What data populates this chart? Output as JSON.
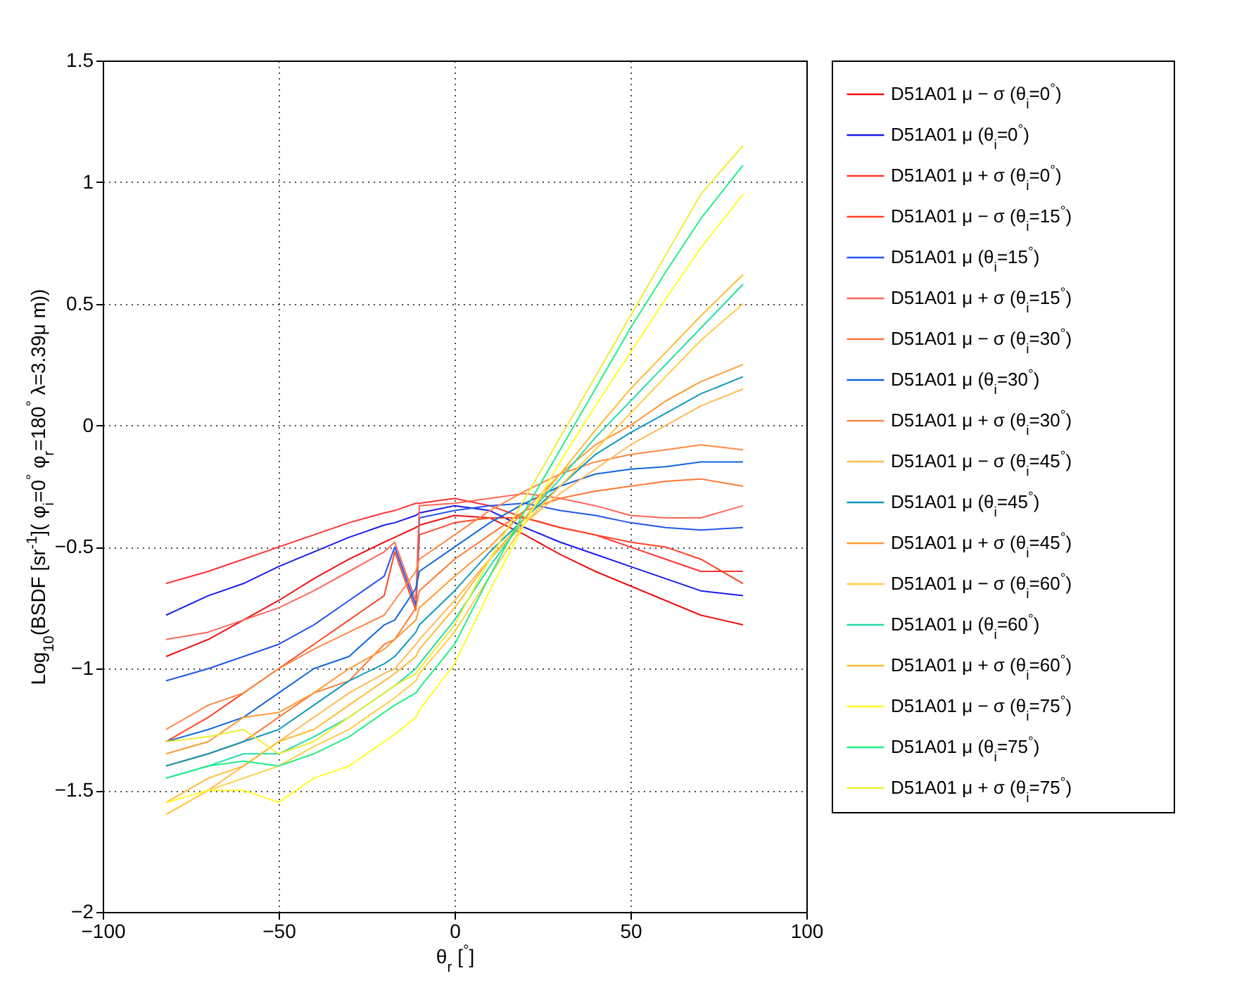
{
  "chart_data": {
    "type": "line",
    "xlabel": "θ$_{r}$ [$^{°}$]",
    "ylabel": "Log$_{10}$(BSDF [sr$^{-1}$]( φ$_{i}$=0$^{°}$  φ$_{r}$=180$^{°}$  λ=3.39μ m))",
    "x": [
      -82,
      -70,
      -60,
      -50,
      -40,
      -30,
      -20,
      -17,
      -11,
      -10,
      0,
      10,
      20,
      30,
      40,
      50,
      60,
      70,
      82
    ],
    "series": [
      {
        "name": "D51A01 μ − σ (θ$_{i}$=0$^{°}$)",
        "color": "#ee1111",
        "values": [
          -0.95,
          -0.88,
          -0.8,
          -0.72,
          -0.63,
          -0.55,
          -0.48,
          -0.46,
          -0.42,
          -0.41,
          -0.37,
          -0.38,
          -0.45,
          -0.53,
          -0.6,
          -0.66,
          -0.72,
          -0.78,
          -0.82
        ]
      },
      {
        "name": "D51A01 μ (θ$_{i}$=0$^{°}$)",
        "color": "#1a1aee",
        "values": [
          -0.78,
          -0.7,
          -0.65,
          -0.58,
          -0.52,
          -0.46,
          -0.41,
          -0.4,
          -0.37,
          -0.36,
          -0.33,
          -0.35,
          -0.42,
          -0.48,
          -0.53,
          -0.58,
          -0.63,
          -0.68,
          -0.7
        ]
      },
      {
        "name": "D51A01 μ + σ (θ$_{i}$=0$^{°}$)",
        "color": "#ff3333",
        "values": [
          -0.65,
          -0.6,
          -0.55,
          -0.5,
          -0.45,
          -0.4,
          -0.36,
          -0.35,
          -0.32,
          -0.32,
          -0.3,
          -0.33,
          -0.38,
          -0.42,
          -0.45,
          -0.5,
          -0.55,
          -0.6,
          -0.6
        ]
      },
      {
        "name": "D51A01 μ − σ (θ$_{i}$=15$^{°}$)",
        "color": "#ff4422",
        "values": [
          -1.3,
          -1.2,
          -1.1,
          -1.0,
          -0.9,
          -0.8,
          -0.7,
          -0.52,
          -0.76,
          -0.45,
          -0.4,
          -0.38,
          -0.38,
          -0.42,
          -0.45,
          -0.48,
          -0.5,
          -0.55,
          -0.65
        ]
      },
      {
        "name": "D51A01 μ (θ$_{i}$=15$^{°}$)",
        "color": "#2255ee",
        "values": [
          -1.05,
          -1.0,
          -0.95,
          -0.9,
          -0.82,
          -0.72,
          -0.62,
          -0.5,
          -0.74,
          -0.38,
          -0.35,
          -0.33,
          -0.32,
          -0.35,
          -0.37,
          -0.4,
          -0.42,
          -0.43,
          -0.42
        ]
      },
      {
        "name": "D51A01 μ + σ (θ$_{i}$=15$^{°}$)",
        "color": "#ff6655",
        "values": [
          -0.88,
          -0.85,
          -0.8,
          -0.75,
          -0.68,
          -0.6,
          -0.52,
          -0.48,
          -0.72,
          -0.33,
          -0.32,
          -0.3,
          -0.28,
          -0.3,
          -0.33,
          -0.37,
          -0.38,
          -0.38,
          -0.33
        ]
      },
      {
        "name": "D51A01 μ − σ (θ$_{i}$=30$^{°}$)",
        "color": "#ff7733",
        "values": [
          -1.4,
          -1.35,
          -1.3,
          -1.2,
          -1.1,
          -1.05,
          -0.9,
          -0.88,
          -0.75,
          -0.68,
          -0.55,
          -0.45,
          -0.35,
          -0.3,
          -0.27,
          -0.25,
          -0.23,
          -0.22,
          -0.25
        ]
      },
      {
        "name": "D51A01 μ (θ$_{i}$=30$^{°}$)",
        "color": "#1166dd",
        "values": [
          -1.3,
          -1.25,
          -1.2,
          -1.1,
          -1.0,
          -0.95,
          -0.82,
          -0.8,
          -0.67,
          -0.6,
          -0.5,
          -0.4,
          -0.32,
          -0.25,
          -0.2,
          -0.18,
          -0.17,
          -0.15,
          -0.15
        ]
      },
      {
        "name": "D51A01 μ + σ (θ$_{i}$=30$^{°}$)",
        "color": "#ff8844",
        "values": [
          -1.25,
          -1.15,
          -1.1,
          -1.0,
          -0.92,
          -0.85,
          -0.78,
          -0.72,
          -0.6,
          -0.55,
          -0.45,
          -0.35,
          -0.27,
          -0.2,
          -0.15,
          -0.12,
          -0.1,
          -0.08,
          -0.1
        ]
      },
      {
        "name": "D51A01 μ − σ (θ$_{i}$=45$^{°}$)",
        "color": "#ffbb55",
        "values": [
          -1.6,
          -1.5,
          -1.4,
          -1.3,
          -1.2,
          -1.1,
          -1.02,
          -1.0,
          -0.9,
          -0.88,
          -0.72,
          -0.55,
          -0.4,
          -0.28,
          -0.18,
          -0.08,
          0.0,
          0.08,
          0.15
        ]
      },
      {
        "name": "D51A01 μ (θ$_{i}$=45$^{°}$)",
        "color": "#1199bb",
        "values": [
          -1.4,
          -1.35,
          -1.3,
          -1.25,
          -1.15,
          -1.05,
          -0.98,
          -0.95,
          -0.85,
          -0.82,
          -0.68,
          -0.52,
          -0.38,
          -0.25,
          -0.12,
          -0.03,
          0.05,
          0.13,
          0.2
        ]
      },
      {
        "name": "D51A01 μ + σ (θ$_{i}$=45$^{°}$)",
        "color": "#ff9933",
        "values": [
          -1.35,
          -1.3,
          -1.2,
          -1.18,
          -1.1,
          -1.0,
          -0.92,
          -0.88,
          -0.8,
          -0.75,
          -0.62,
          -0.5,
          -0.35,
          -0.2,
          -0.08,
          0.0,
          0.1,
          0.18,
          0.25
        ]
      },
      {
        "name": "D51A01 μ − σ (θ$_{i}$=60$^{°}$)",
        "color": "#ffcc44",
        "values": [
          -1.6,
          -1.5,
          -1.45,
          -1.4,
          -1.32,
          -1.25,
          -1.15,
          -1.12,
          -1.05,
          -1.02,
          -0.85,
          -0.62,
          -0.4,
          -0.25,
          -0.1,
          0.05,
          0.2,
          0.35,
          0.5
        ]
      },
      {
        "name": "D51A01 μ (θ$_{i}$=60$^{°}$)",
        "color": "#22ddaa",
        "values": [
          -1.45,
          -1.4,
          -1.35,
          -1.35,
          -1.28,
          -1.2,
          -1.1,
          -1.07,
          -1.0,
          -0.98,
          -0.8,
          -0.58,
          -0.38,
          -0.22,
          -0.05,
          0.1,
          0.25,
          0.4,
          0.58
        ]
      },
      {
        "name": "D51A01 μ + σ (θ$_{i}$=60$^{°}$)",
        "color": "#ffbb33",
        "values": [
          -1.55,
          -1.45,
          -1.4,
          -1.3,
          -1.25,
          -1.15,
          -1.05,
          -1.02,
          -0.95,
          -0.92,
          -0.75,
          -0.55,
          -0.38,
          -0.2,
          -0.02,
          0.15,
          0.3,
          0.45,
          0.62
        ]
      },
      {
        "name": "D51A01 μ − σ (θ$_{i}$=75$^{°}$)",
        "color": "#ffff22",
        "values": [
          -1.55,
          -1.5,
          -1.5,
          -1.55,
          -1.45,
          -1.4,
          -1.3,
          -1.27,
          -1.2,
          -1.17,
          -0.98,
          -0.68,
          -0.4,
          -0.15,
          0.08,
          0.3,
          0.52,
          0.73,
          0.95
        ]
      },
      {
        "name": "D51A01 μ (θ$_{i}$=75$^{°}$)",
        "color": "#22ee88",
        "values": [
          -1.45,
          -1.4,
          -1.38,
          -1.4,
          -1.35,
          -1.28,
          -1.18,
          -1.15,
          -1.1,
          -1.08,
          -0.9,
          -0.62,
          -0.35,
          -0.1,
          0.15,
          0.4,
          0.63,
          0.85,
          1.07
        ]
      },
      {
        "name": "D51A01 μ + σ (θ$_{i}$=75$^{°}$)",
        "color": "#eeee33",
        "values": [
          -1.3,
          -1.28,
          -1.25,
          -1.35,
          -1.3,
          -1.2,
          -1.1,
          -1.07,
          -1.02,
          -1.0,
          -0.82,
          -0.55,
          -0.3,
          -0.05,
          0.2,
          0.45,
          0.7,
          0.95,
          1.15
        ]
      }
    ],
    "xlim": [
      -100,
      100
    ],
    "xticks": [
      -100,
      -50,
      0,
      50,
      100
    ],
    "ylim": [
      -2,
      1.5
    ],
    "yticks": [
      -2,
      -1.5,
      -1,
      -0.5,
      0,
      0.5,
      1,
      1.5
    ],
    "grid": true,
    "legend": "right",
    "line_style": "solid",
    "marker": "none"
  }
}
